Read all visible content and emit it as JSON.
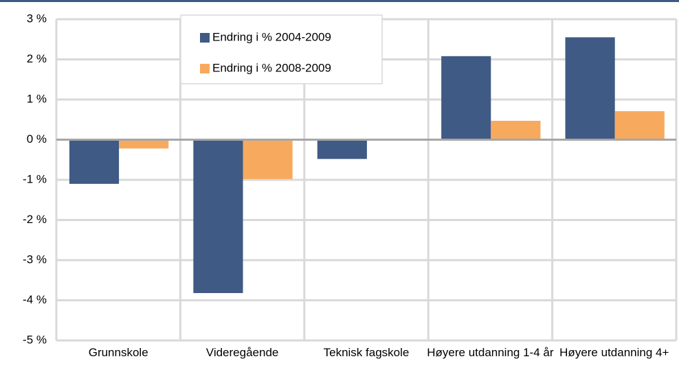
{
  "chart_data": {
    "type": "bar",
    "categories": [
      "Grunnskole",
      "Videregående",
      "Teknisk fagskole",
      "Høyere utdanning 1-4 år",
      "Høyere utdanning 4+"
    ],
    "series": [
      {
        "name": "Endring i % 2004-2009",
        "color": "#3f5a84",
        "values": [
          -1.1,
          -3.82,
          -0.48,
          2.08,
          2.55
        ]
      },
      {
        "name": "Endring i % 2008-2009",
        "color": "#f7aa5e",
        "values": [
          -0.22,
          -0.98,
          null,
          0.47,
          0.71
        ]
      }
    ],
    "ylim": [
      -5,
      3
    ],
    "yticks": [
      {
        "value": 3,
        "label": "3 %"
      },
      {
        "value": 2,
        "label": "2 %"
      },
      {
        "value": 1,
        "label": "1 %"
      },
      {
        "value": 0,
        "label": "0 %"
      },
      {
        "value": -1,
        "label": "-1 %"
      },
      {
        "value": -2,
        "label": "-2 %"
      },
      {
        "value": -3,
        "label": "-3 %"
      },
      {
        "value": -4,
        "label": "-4 %"
      },
      {
        "value": -5,
        "label": "-5 %"
      }
    ],
    "grid": true
  }
}
